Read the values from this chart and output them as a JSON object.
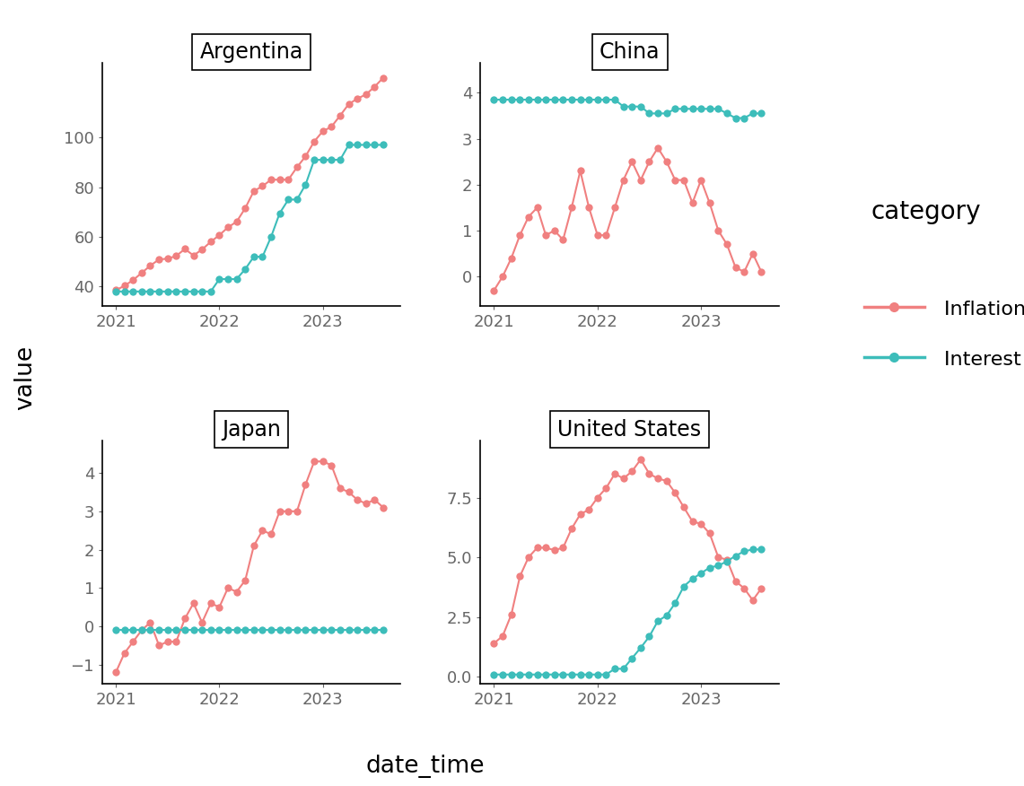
{
  "inflation_color": "#F08080",
  "interest_color": "#3DBDBA",
  "marker_size": 6,
  "line_width": 1.5,
  "title_fontsize": 17,
  "label_fontsize": 19,
  "tick_fontsize": 13,
  "legend_title_fontsize": 20,
  "legend_fontsize": 16,
  "argentina": {
    "inflation_dates": [
      2021.0,
      2021.083,
      2021.167,
      2021.25,
      2021.333,
      2021.417,
      2021.5,
      2021.583,
      2021.667,
      2021.75,
      2021.833,
      2021.917,
      2022.0,
      2022.083,
      2022.167,
      2022.25,
      2022.333,
      2022.417,
      2022.5,
      2022.583,
      2022.667,
      2022.75,
      2022.833,
      2022.917,
      2023.0,
      2023.083,
      2023.167,
      2023.25,
      2023.333,
      2023.417,
      2023.5,
      2023.583
    ],
    "inflation_values": [
      38.5,
      40.3,
      42.6,
      45.5,
      48.4,
      50.9,
      51.2,
      52.3,
      55.1,
      52.5,
      54.9,
      58.0,
      60.7,
      63.8,
      66.1,
      71.5,
      78.4,
      80.4,
      83.0,
      83.0,
      83.0,
      88.0,
      92.4,
      98.4,
      102.5,
      104.3,
      108.8,
      113.4,
      115.6,
      117.3,
      120.4,
      124.0
    ],
    "interest_dates": [
      2021.0,
      2021.083,
      2021.167,
      2021.25,
      2021.333,
      2021.417,
      2021.5,
      2021.583,
      2021.667,
      2021.75,
      2021.833,
      2021.917,
      2022.0,
      2022.083,
      2022.167,
      2022.25,
      2022.333,
      2022.417,
      2022.5,
      2022.583,
      2022.667,
      2022.75,
      2022.833,
      2022.917,
      2023.0,
      2023.083,
      2023.167,
      2023.25,
      2023.333,
      2023.417,
      2023.5,
      2023.583
    ],
    "interest_values": [
      38,
      38,
      38,
      38,
      38,
      38,
      38,
      38,
      38,
      38,
      38,
      38,
      43,
      43,
      43,
      47,
      52,
      52,
      60,
      69.5,
      75,
      75,
      81,
      91,
      91,
      91,
      91,
      97,
      97,
      97,
      97,
      97
    ]
  },
  "china": {
    "inflation_dates": [
      2021.0,
      2021.083,
      2021.167,
      2021.25,
      2021.333,
      2021.417,
      2021.5,
      2021.583,
      2021.667,
      2021.75,
      2021.833,
      2021.917,
      2022.0,
      2022.083,
      2022.167,
      2022.25,
      2022.333,
      2022.417,
      2022.5,
      2022.583,
      2022.667,
      2022.75,
      2022.833,
      2022.917,
      2023.0,
      2023.083,
      2023.167,
      2023.25,
      2023.333,
      2023.417,
      2023.5,
      2023.583
    ],
    "inflation_values": [
      -0.3,
      0.0,
      0.4,
      0.9,
      1.3,
      1.5,
      0.9,
      1.0,
      0.8,
      1.5,
      2.3,
      1.5,
      0.9,
      0.9,
      1.5,
      2.1,
      2.5,
      2.1,
      2.5,
      2.8,
      2.5,
      2.1,
      2.1,
      1.6,
      2.1,
      1.6,
      1.0,
      0.7,
      0.2,
      0.1,
      0.5,
      0.1
    ],
    "interest_dates": [
      2021.0,
      2021.083,
      2021.167,
      2021.25,
      2021.333,
      2021.417,
      2021.5,
      2021.583,
      2021.667,
      2021.75,
      2021.833,
      2021.917,
      2022.0,
      2022.083,
      2022.167,
      2022.25,
      2022.333,
      2022.417,
      2022.5,
      2022.583,
      2022.667,
      2022.75,
      2022.833,
      2022.917,
      2023.0,
      2023.083,
      2023.167,
      2023.25,
      2023.333,
      2023.417,
      2023.5,
      2023.583
    ],
    "interest_values": [
      3.85,
      3.85,
      3.85,
      3.85,
      3.85,
      3.85,
      3.85,
      3.85,
      3.85,
      3.85,
      3.85,
      3.85,
      3.85,
      3.85,
      3.85,
      3.7,
      3.7,
      3.7,
      3.55,
      3.55,
      3.55,
      3.65,
      3.65,
      3.65,
      3.65,
      3.65,
      3.65,
      3.55,
      3.45,
      3.45,
      3.55,
      3.55
    ]
  },
  "japan": {
    "inflation_dates": [
      2021.0,
      2021.083,
      2021.167,
      2021.25,
      2021.333,
      2021.417,
      2021.5,
      2021.583,
      2021.667,
      2021.75,
      2021.833,
      2021.917,
      2022.0,
      2022.083,
      2022.167,
      2022.25,
      2022.333,
      2022.417,
      2022.5,
      2022.583,
      2022.667,
      2022.75,
      2022.833,
      2022.917,
      2023.0,
      2023.083,
      2023.167,
      2023.25,
      2023.333,
      2023.417,
      2023.5,
      2023.583
    ],
    "inflation_values": [
      -1.2,
      -0.7,
      -0.4,
      -0.1,
      0.1,
      -0.5,
      -0.4,
      -0.4,
      0.2,
      0.6,
      0.1,
      0.6,
      0.5,
      1.0,
      0.9,
      1.2,
      2.1,
      2.5,
      2.4,
      3.0,
      3.0,
      3.0,
      3.7,
      4.3,
      4.3,
      4.2,
      3.6,
      3.5,
      3.3,
      3.2,
      3.3,
      3.1
    ],
    "interest_dates": [
      2021.0,
      2021.083,
      2021.167,
      2021.25,
      2021.333,
      2021.417,
      2021.5,
      2021.583,
      2021.667,
      2021.75,
      2021.833,
      2021.917,
      2022.0,
      2022.083,
      2022.167,
      2022.25,
      2022.333,
      2022.417,
      2022.5,
      2022.583,
      2022.667,
      2022.75,
      2022.833,
      2022.917,
      2023.0,
      2023.083,
      2023.167,
      2023.25,
      2023.333,
      2023.417,
      2023.5,
      2023.583
    ],
    "interest_values": [
      -0.1,
      -0.1,
      -0.1,
      -0.1,
      -0.1,
      -0.1,
      -0.1,
      -0.1,
      -0.1,
      -0.1,
      -0.1,
      -0.1,
      -0.1,
      -0.1,
      -0.1,
      -0.1,
      -0.1,
      -0.1,
      -0.1,
      -0.1,
      -0.1,
      -0.1,
      -0.1,
      -0.1,
      -0.1,
      -0.1,
      -0.1,
      -0.1,
      -0.1,
      -0.1,
      -0.1,
      -0.1
    ]
  },
  "united_states": {
    "inflation_dates": [
      2021.0,
      2021.083,
      2021.167,
      2021.25,
      2021.333,
      2021.417,
      2021.5,
      2021.583,
      2021.667,
      2021.75,
      2021.833,
      2021.917,
      2022.0,
      2022.083,
      2022.167,
      2022.25,
      2022.333,
      2022.417,
      2022.5,
      2022.583,
      2022.667,
      2022.75,
      2022.833,
      2022.917,
      2023.0,
      2023.083,
      2023.167,
      2023.25,
      2023.333,
      2023.417,
      2023.5,
      2023.583
    ],
    "inflation_values": [
      1.4,
      1.7,
      2.6,
      4.2,
      5.0,
      5.4,
      5.4,
      5.3,
      5.4,
      6.2,
      6.8,
      7.0,
      7.5,
      7.9,
      8.5,
      8.3,
      8.6,
      9.1,
      8.5,
      8.3,
      8.2,
      7.7,
      7.1,
      6.5,
      6.4,
      6.0,
      5.0,
      4.9,
      4.0,
      3.7,
      3.2,
      3.7
    ],
    "interest_dates": [
      2021.0,
      2021.083,
      2021.167,
      2021.25,
      2021.333,
      2021.417,
      2021.5,
      2021.583,
      2021.667,
      2021.75,
      2021.833,
      2021.917,
      2022.0,
      2022.083,
      2022.167,
      2022.25,
      2022.333,
      2022.417,
      2022.5,
      2022.583,
      2022.667,
      2022.75,
      2022.833,
      2022.917,
      2023.0,
      2023.083,
      2023.167,
      2023.25,
      2023.333,
      2023.417,
      2023.5,
      2023.583
    ],
    "interest_values": [
      0.09,
      0.09,
      0.09,
      0.09,
      0.09,
      0.09,
      0.09,
      0.09,
      0.09,
      0.09,
      0.09,
      0.09,
      0.09,
      0.09,
      0.33,
      0.33,
      0.77,
      1.21,
      1.68,
      2.33,
      2.56,
      3.08,
      3.78,
      4.1,
      4.33,
      4.57,
      4.65,
      4.83,
      5.06,
      5.25,
      5.33,
      5.33
    ]
  },
  "bg_color": "#FFFFFF"
}
